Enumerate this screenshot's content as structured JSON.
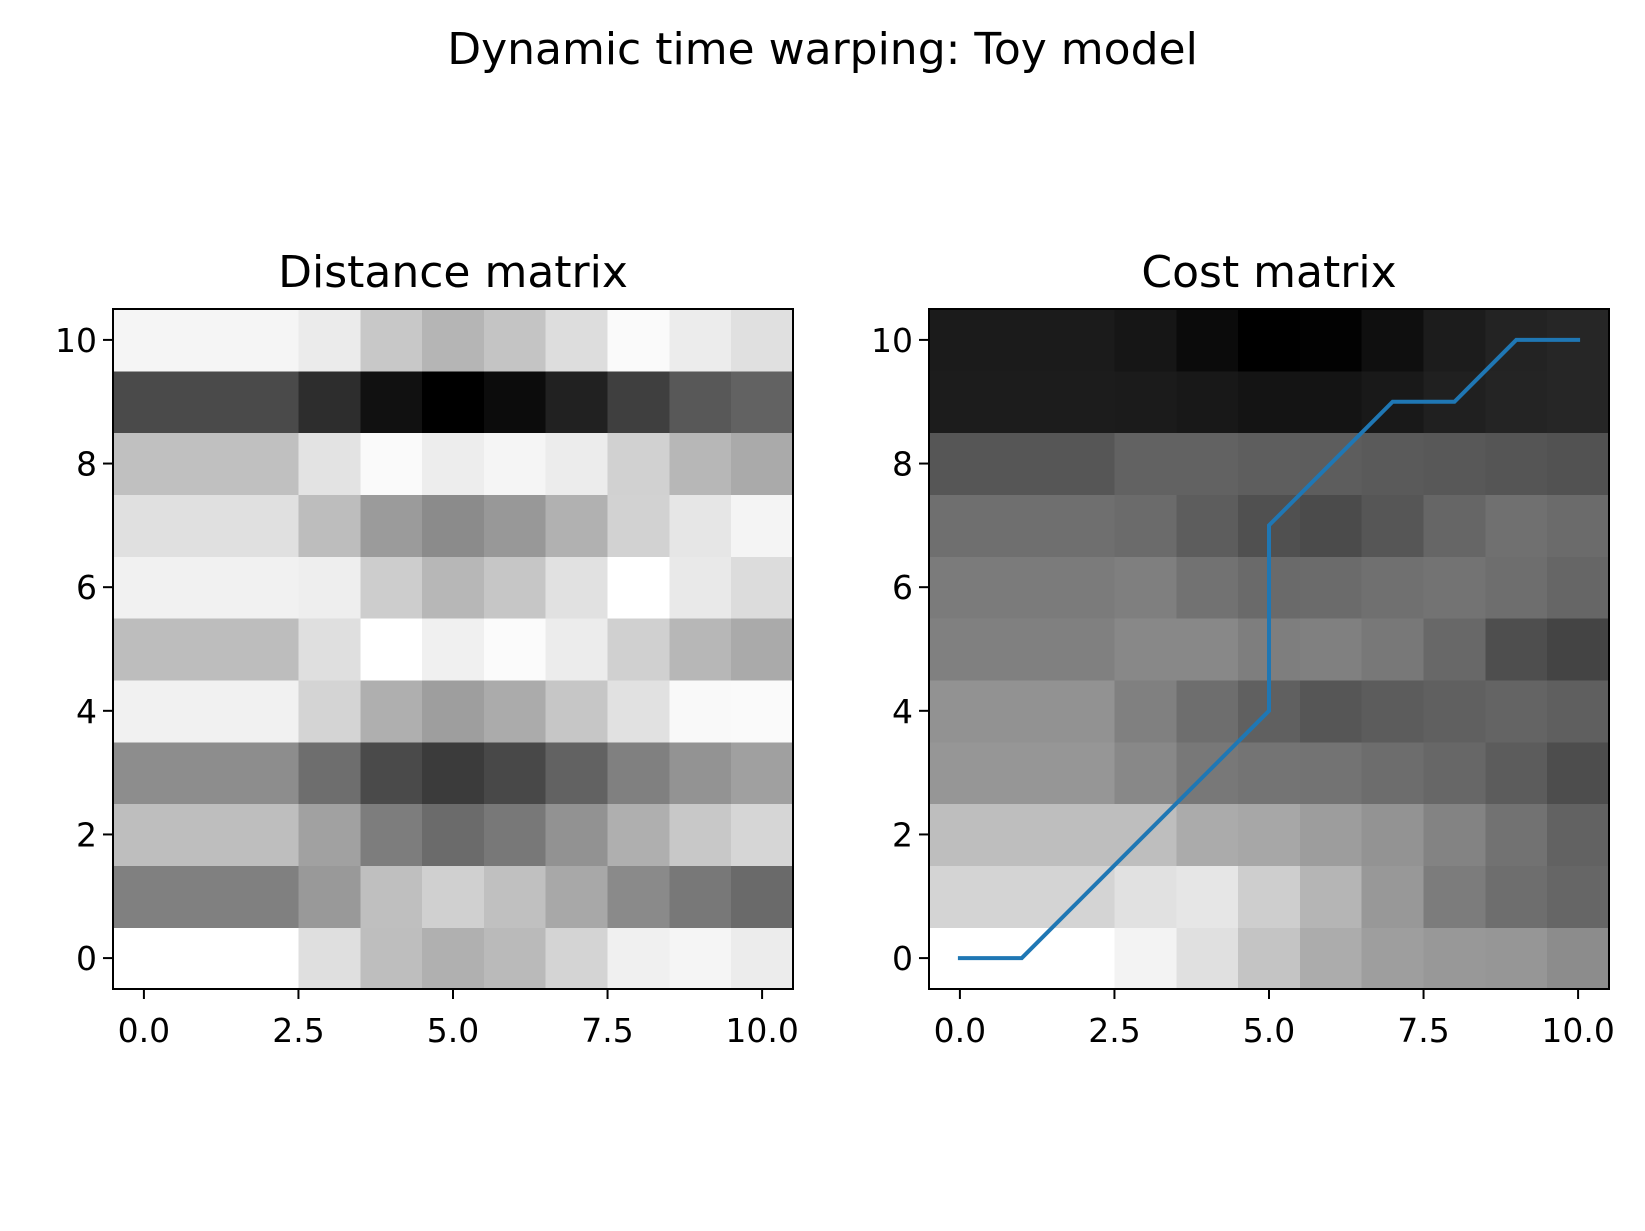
{
  "figure": {
    "suptitle": "Dynamic time warping: Toy model"
  },
  "chart_data": [
    {
      "type": "heatmap",
      "title": "Distance matrix",
      "xlabel": "",
      "ylabel": "",
      "xlim": [
        -0.5,
        10.5
      ],
      "ylim": [
        -0.5,
        10.5
      ],
      "xticks": [
        0.0,
        2.5,
        5.0,
        7.5,
        10.0
      ],
      "xtick_labels": [
        "0.0",
        "2.5",
        "5.0",
        "7.5",
        "10.0"
      ],
      "yticks": [
        0,
        2,
        4,
        6,
        8,
        10
      ],
      "ytick_labels": [
        "0",
        "2",
        "4",
        "6",
        "8",
        "10"
      ],
      "colormap": "gray",
      "grid": false,
      "rows_from_bottom": [
        [
          255,
          255,
          255,
          223,
          190,
          176,
          186,
          212,
          240,
          245,
          236
        ],
        [
          128,
          128,
          128,
          153,
          191,
          208,
          192,
          168,
          138,
          120,
          106
        ],
        [
          190,
          190,
          190,
          161,
          125,
          107,
          120,
          146,
          175,
          200,
          214
        ],
        [
          141,
          141,
          141,
          110,
          74,
          59,
          72,
          98,
          128,
          147,
          160
        ],
        [
          241,
          241,
          241,
          212,
          175,
          158,
          171,
          198,
          225,
          249,
          250
        ],
        [
          189,
          189,
          189,
          223,
          255,
          240,
          251,
          236,
          208,
          183,
          170
        ],
        [
          241,
          241,
          241,
          238,
          205,
          183,
          198,
          225,
          255,
          233,
          220
        ],
        [
          224,
          224,
          224,
          189,
          155,
          139,
          152,
          177,
          210,
          230,
          244
        ],
        [
          192,
          192,
          192,
          227,
          250,
          237,
          245,
          236,
          209,
          183,
          170
        ],
        [
          74,
          74,
          74,
          45,
          17,
          0,
          12,
          33,
          63,
          88,
          98
        ],
        [
          245,
          245,
          245,
          235,
          200,
          181,
          196,
          221,
          250,
          236,
          224
        ]
      ]
    },
    {
      "type": "heatmap",
      "title": "Cost matrix",
      "xlabel": "",
      "ylabel": "",
      "xlim": [
        -0.5,
        10.5
      ],
      "ylim": [
        -0.5,
        10.5
      ],
      "xticks": [
        0.0,
        2.5,
        5.0,
        7.5,
        10.0
      ],
      "xtick_labels": [
        "0.0",
        "2.5",
        "5.0",
        "7.5",
        "10.0"
      ],
      "yticks": [
        0,
        2,
        4,
        6,
        8,
        10
      ],
      "ytick_labels": [
        "0",
        "2",
        "4",
        "6",
        "8",
        "10"
      ],
      "colormap": "gray",
      "grid": false,
      "rows_from_bottom": [
        [
          255,
          255,
          255,
          243,
          224,
          196,
          172,
          158,
          152,
          150,
          140
        ],
        [
          212,
          212,
          212,
          225,
          230,
          206,
          181,
          152,
          124,
          110,
          102
        ],
        [
          190,
          190,
          190,
          190,
          171,
          167,
          157,
          147,
          131,
          114,
          98
        ],
        [
          150,
          150,
          150,
          136,
          120,
          116,
          115,
          109,
          103,
          92,
          77
        ],
        [
          146,
          146,
          146,
          128,
          110,
          96,
          86,
          92,
          96,
          100,
          95
        ],
        [
          128,
          128,
          128,
          136,
          136,
          126,
          128,
          120,
          104,
          78,
          68
        ],
        [
          123,
          123,
          123,
          127,
          114,
          106,
          107,
          112,
          115,
          110,
          102
        ],
        [
          111,
          111,
          111,
          107,
          93,
          80,
          75,
          86,
          102,
          112,
          107
        ],
        [
          86,
          86,
          86,
          98,
          98,
          94,
          93,
          90,
          88,
          85,
          82
        ],
        [
          28,
          28,
          28,
          27,
          24,
          20,
          20,
          25,
          32,
          36,
          38
        ],
        [
          27,
          27,
          27,
          22,
          11,
          0,
          2,
          15,
          28,
          35,
          38
        ]
      ],
      "series": [
        {
          "color": "#1f77b4",
          "x": [
            0,
            1,
            2,
            3,
            4,
            5,
            5,
            5,
            5,
            6,
            7,
            8,
            9,
            10
          ],
          "y": [
            0,
            0,
            1,
            2,
            3,
            4,
            5,
            6,
            7,
            8,
            9,
            9,
            10,
            10
          ]
        }
      ]
    }
  ]
}
